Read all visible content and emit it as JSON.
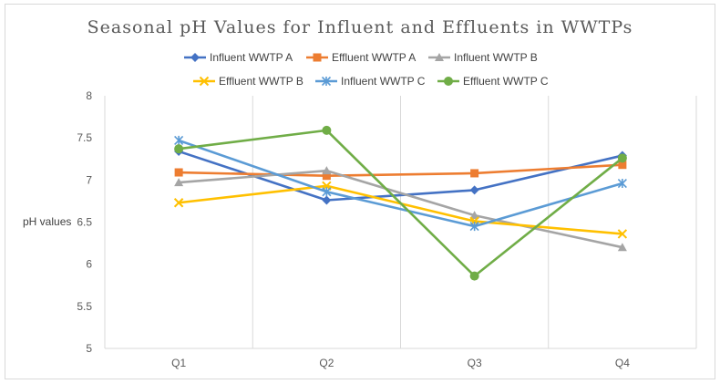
{
  "chart_data": {
    "type": "line",
    "title": "Seasonal pH Values for Influent and Effluents in WWTPs",
    "xlabel": "",
    "ylabel": "pH values",
    "categories": [
      "Q1",
      "Q2",
      "Q3",
      "Q4"
    ],
    "ylim": [
      5,
      8
    ],
    "yticks": [
      "5",
      "5.5",
      "6",
      "6.5",
      "7",
      "7.5",
      "8"
    ],
    "grid": "vertical",
    "legend_position": "top",
    "series": [
      {
        "name": "Influent WWTP A",
        "color": "#4472c4",
        "marker": "diamond",
        "values": [
          7.34,
          6.76,
          6.88,
          7.29
        ]
      },
      {
        "name": "Effluent WWTP A",
        "color": "#ed7d31",
        "marker": "square",
        "values": [
          7.09,
          7.05,
          7.08,
          7.18
        ]
      },
      {
        "name": "Influent WWTP B",
        "color": "#a5a5a5",
        "marker": "triangle",
        "values": [
          6.97,
          7.11,
          6.58,
          6.2
        ]
      },
      {
        "name": "Effluent WWTP B",
        "color": "#ffc000",
        "marker": "x",
        "values": [
          6.73,
          6.93,
          6.51,
          6.36
        ]
      },
      {
        "name": "Influent WWTP C",
        "color": "#5b9bd5",
        "marker": "star",
        "values": [
          7.47,
          6.86,
          6.45,
          6.96
        ]
      },
      {
        "name": "Effluent WWTP C",
        "color": "#70ad47",
        "marker": "circle",
        "values": [
          7.37,
          7.59,
          5.86,
          7.26
        ]
      }
    ]
  }
}
